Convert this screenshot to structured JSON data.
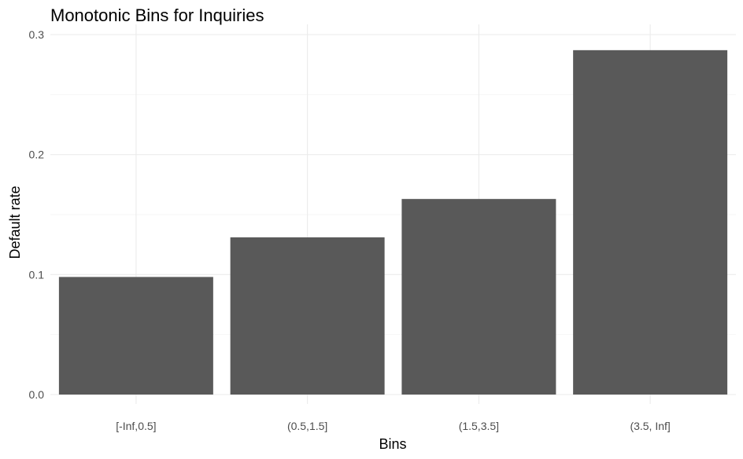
{
  "chart_data": {
    "type": "bar",
    "title": "Monotonic Bins for Inquiries",
    "xlabel": "Bins",
    "ylabel": "Default rate",
    "categories": [
      "[-Inf,0.5]",
      "(0.5,1.5]",
      "(1.5,3.5]",
      "(3.5, Inf]"
    ],
    "values": [
      0.098,
      0.131,
      0.163,
      0.287
    ],
    "ylim": [
      0,
      0.3
    ],
    "yticks": [
      0.0,
      0.1,
      0.2,
      0.3
    ],
    "ytick_labels": [
      "0.0",
      "0.1",
      "0.2",
      "0.3"
    ],
    "grid": true,
    "legend": "none",
    "colors": {
      "bar": "#595959",
      "grid_major": "#ebebeb",
      "grid_minor": "#f2f2f2",
      "background": "#ffffff",
      "tick_text": "#4d4d4d"
    }
  }
}
